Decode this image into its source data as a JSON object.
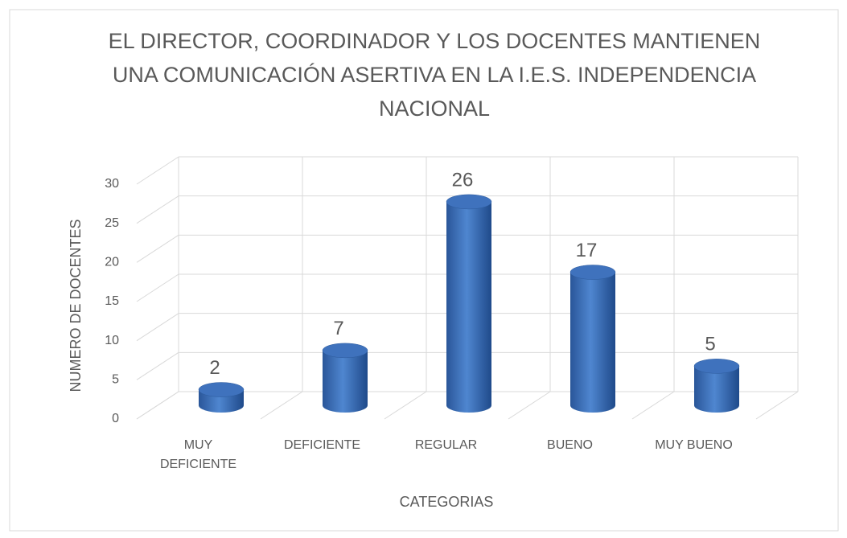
{
  "chart_data": {
    "type": "bar",
    "title": "EL DIRECTOR, COORDINADOR Y LOS DOCENTES MANTIENEN UNA COMUNICACIÓN ASERTIVA EN LA I.E.S. INDEPENDENCIA NACIONAL",
    "x_label": "CATEGORIAS",
    "y_label": "NUMERO DE DOCENTES",
    "categories": [
      "MUY DEFICIENTE",
      "DEFICIENTE",
      "REGULAR",
      "BUENO",
      "MUY BUENO"
    ],
    "values": [
      2,
      7,
      26,
      17,
      5
    ],
    "color": "#4472c4",
    "ylim": [
      0,
      30
    ],
    "yticks": [
      0,
      5,
      10,
      15,
      20,
      25,
      30
    ],
    "grid": true
  }
}
